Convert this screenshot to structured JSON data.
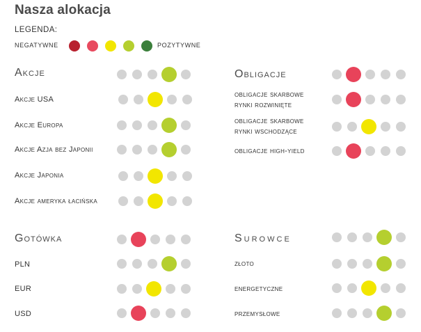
{
  "title": "Nasza alokacja",
  "legend": {
    "label": "LEGENDA:",
    "negative": "NEGATYWNE",
    "positive": "POZYTYWNE",
    "colors": [
      "#b8202e",
      "#e84a5f",
      "#f2e600",
      "#b5cf2f",
      "#3b7f3b"
    ]
  },
  "palette": {
    "neutral": "#d3d3d3",
    "levels": [
      "#e8435a",
      "#e8435a",
      "#f2e600",
      "#b5cf2f",
      "#b5cf2f"
    ]
  },
  "sections": {
    "akcje": {
      "title": "Akcje",
      "level": 4,
      "rows": [
        {
          "label": "Akcje USA",
          "level": 3
        },
        {
          "label": "Akcje Europa",
          "level": 4
        },
        {
          "label": "Akcje Azja bez Japonii",
          "level": 4
        },
        {
          "label": "Akcje Japonia",
          "level": 3
        },
        {
          "label": "Akcje ameryka łacińska",
          "level": 3
        }
      ]
    },
    "obligacje": {
      "title": "Obligacje",
      "level": 2,
      "rows": [
        {
          "label": "obligacje skarbowe\nrynki rozwinięte",
          "level": 2
        },
        {
          "label": "obligacje skarbowe\nrynki wschodzące",
          "level": 3
        },
        {
          "label": "obligacje high-yield",
          "level": 2
        }
      ]
    },
    "gotowka": {
      "title": "Gotówka",
      "level": 2,
      "rows": [
        {
          "label": "PLN",
          "level": 4
        },
        {
          "label": "EUR",
          "level": 3
        },
        {
          "label": "USD",
          "level": 2
        }
      ]
    },
    "surowce": {
      "title": "Surowce",
      "level": 4,
      "rows": [
        {
          "label": "złoto",
          "level": 4
        },
        {
          "label": "energetyczne",
          "level": 3
        },
        {
          "label": "przemysłowe",
          "level": 4
        }
      ]
    }
  }
}
